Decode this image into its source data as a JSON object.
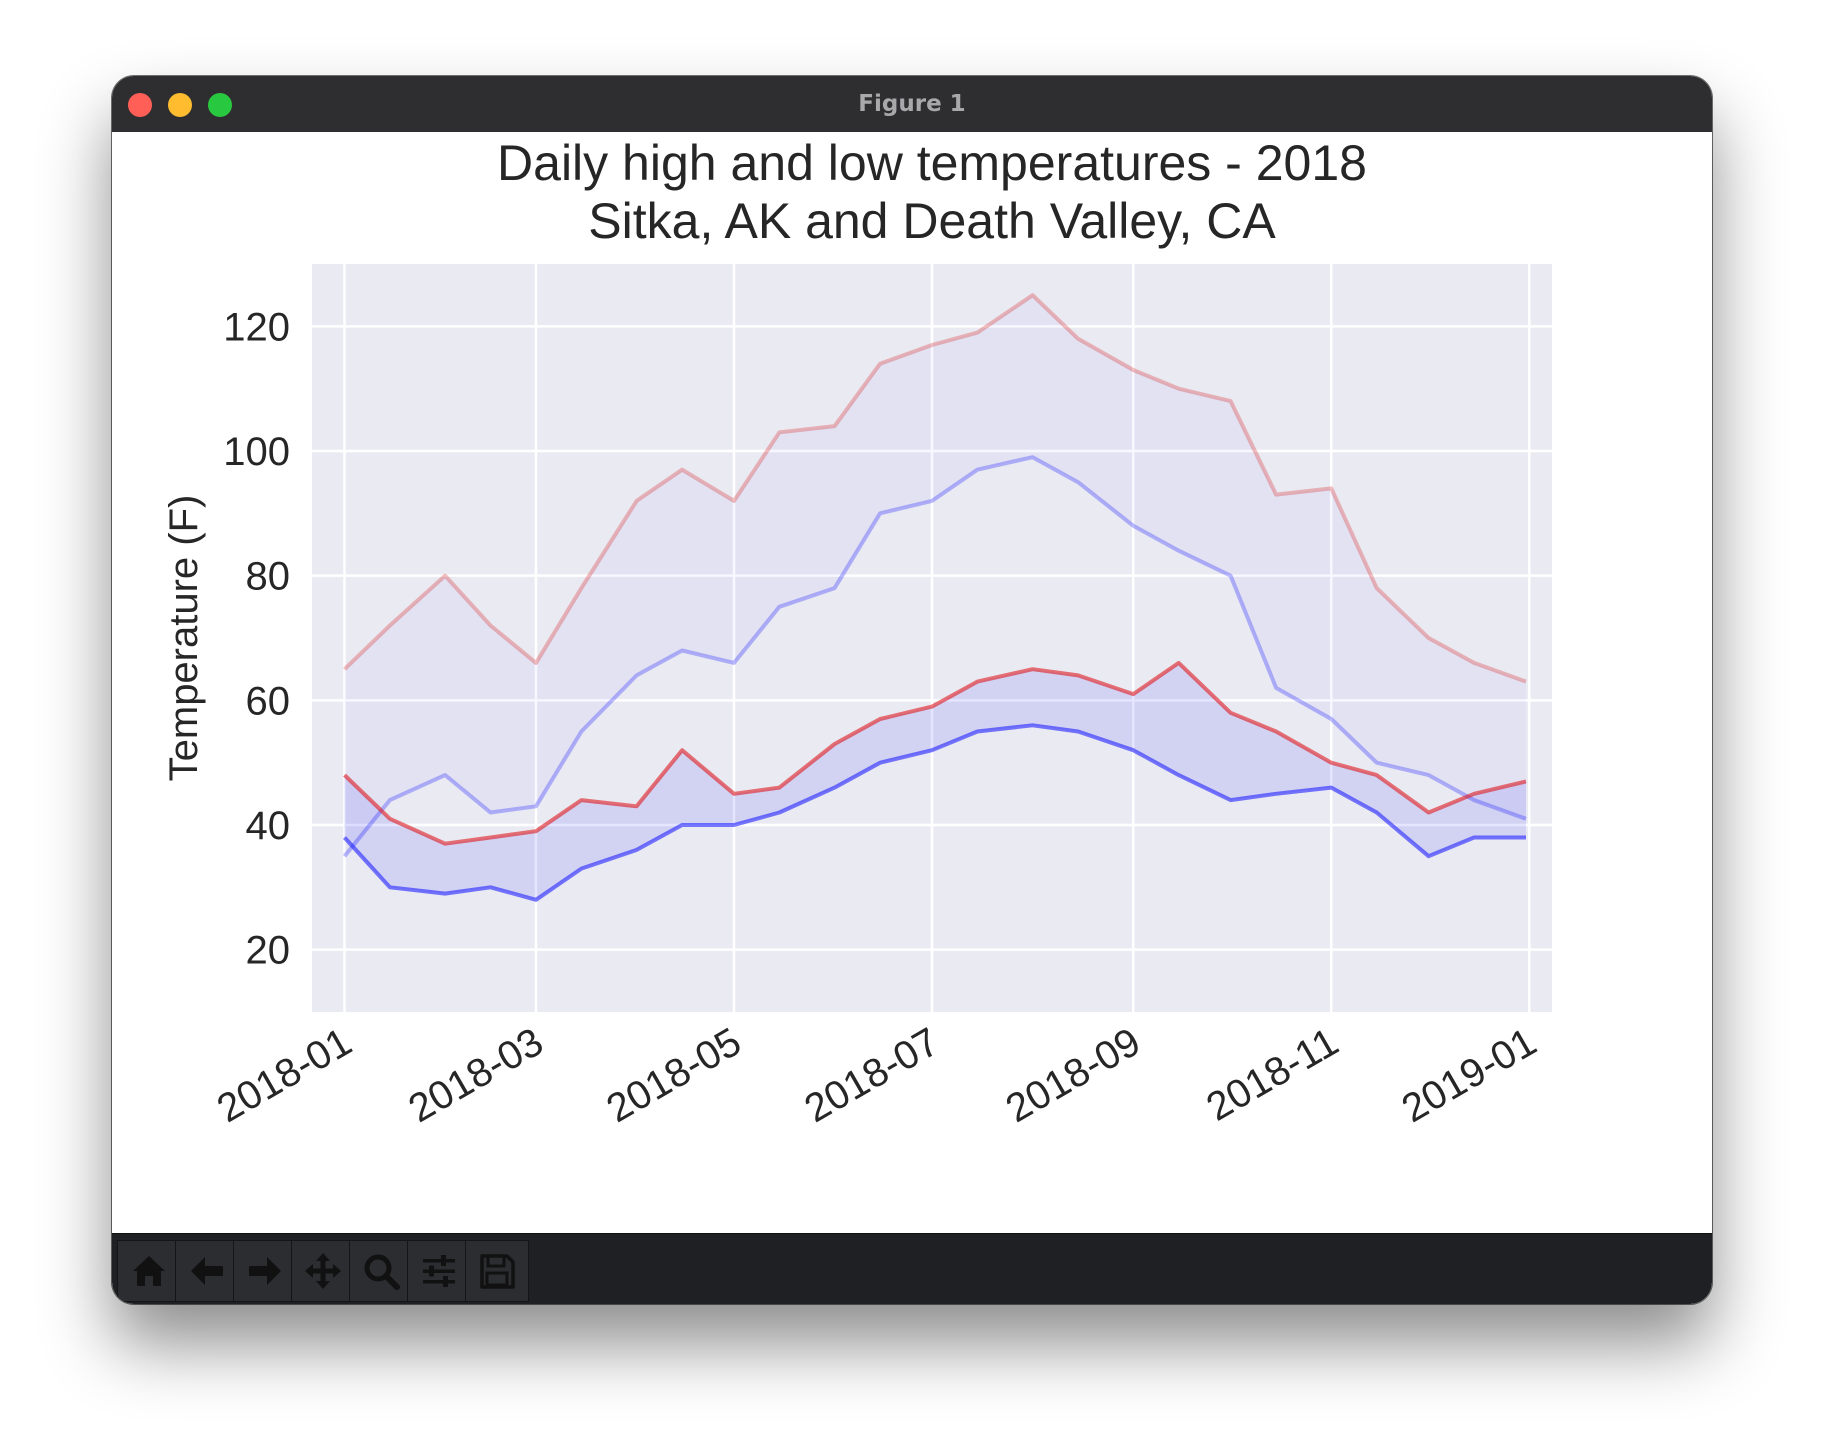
{
  "window": {
    "title": "Figure 1"
  },
  "toolbar": {
    "buttons": [
      {
        "name": "home-button",
        "icon": "home-icon"
      },
      {
        "name": "back-button",
        "icon": "arrow-left-icon"
      },
      {
        "name": "forward-button",
        "icon": "arrow-right-icon"
      },
      {
        "name": "pan-button",
        "icon": "move-icon"
      },
      {
        "name": "zoom-button",
        "icon": "search-icon"
      },
      {
        "name": "configure-subplots-button",
        "icon": "sliders-icon"
      },
      {
        "name": "save-button",
        "icon": "save-icon"
      }
    ]
  },
  "chart_data": {
    "type": "line",
    "title_line1": "Daily high and low temperatures - 2018",
    "title_line2": "Sitka, AK and Death Valley, CA",
    "xlabel": "",
    "ylabel": "Temperature (F)",
    "ylim": [
      10,
      130
    ],
    "yticks": [
      20,
      40,
      60,
      80,
      100,
      120
    ],
    "xlim": [
      "2017-12-22",
      "2019-01-08"
    ],
    "xticks": [
      "2018-01",
      "2018-03",
      "2018-05",
      "2018-07",
      "2018-09",
      "2018-11",
      "2019-01"
    ],
    "grid": true,
    "x": [
      "2018-01-01",
      "2018-01-15",
      "2018-02-01",
      "2018-02-15",
      "2018-03-01",
      "2018-03-15",
      "2018-04-01",
      "2018-04-15",
      "2018-05-01",
      "2018-05-15",
      "2018-06-01",
      "2018-06-15",
      "2018-07-01",
      "2018-07-15",
      "2018-08-01",
      "2018-08-15",
      "2018-09-01",
      "2018-09-15",
      "2018-10-01",
      "2018-10-15",
      "2018-11-01",
      "2018-11-15",
      "2018-12-01",
      "2018-12-15",
      "2018-12-31"
    ],
    "series": [
      {
        "color": "#d62728",
        "opacity": 0.3,
        "values": [
          65,
          72,
          80,
          72,
          66,
          78,
          92,
          97,
          92,
          103,
          104,
          114,
          117,
          119,
          125,
          118,
          113,
          110,
          108,
          93,
          94,
          78,
          70,
          66,
          63
        ]
      },
      {
        "color": "#1f1fff",
        "opacity": 0.3,
        "values": [
          35,
          44,
          48,
          42,
          43,
          55,
          64,
          68,
          66,
          75,
          78,
          90,
          92,
          97,
          99,
          95,
          88,
          84,
          80,
          62,
          57,
          50,
          48,
          44,
          41
        ]
      },
      {
        "color": "#e0191e",
        "opacity": 0.6,
        "values": [
          48,
          41,
          37,
          38,
          39,
          44,
          43,
          52,
          45,
          46,
          53,
          57,
          59,
          63,
          65,
          64,
          61,
          66,
          58,
          55,
          50,
          48,
          42,
          45,
          47
        ]
      },
      {
        "color": "#1f1fff",
        "opacity": 0.6,
        "values": [
          38,
          30,
          29,
          30,
          28,
          33,
          36,
          40,
          40,
          42,
          46,
          50,
          52,
          55,
          56,
          55,
          52,
          48,
          44,
          45,
          46,
          42,
          35,
          38,
          38
        ]
      }
    ],
    "fills": [
      {
        "between": [
          0,
          1
        ],
        "color": "#0000ff",
        "opacity": 0.03
      },
      {
        "between": [
          2,
          3
        ],
        "color": "#0000ff",
        "opacity": 0.1
      }
    ]
  }
}
